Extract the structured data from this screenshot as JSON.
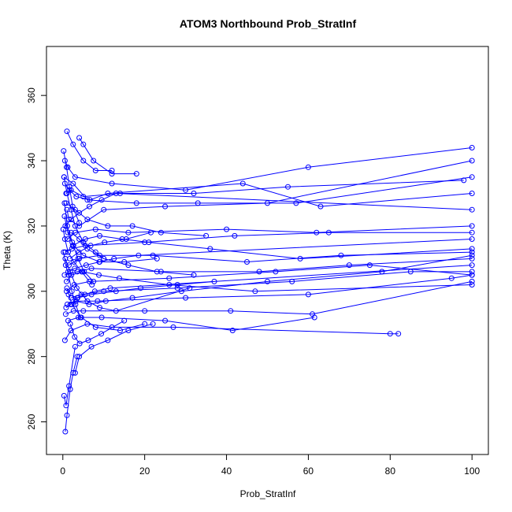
{
  "chart_data": {
    "type": "line",
    "title": "ATOM3 Northbound Prob_StratInf",
    "xlabel": "Prob_StratInf",
    "ylabel": "Theta (K)",
    "xlim": [
      -4,
      104
    ],
    "ylim": [
      250,
      375
    ],
    "xticks": [
      0,
      20,
      40,
      60,
      80,
      100
    ],
    "yticks": [
      260,
      280,
      300,
      320,
      340,
      360
    ],
    "grid": false,
    "legend": "none",
    "series_color": "#0000ff",
    "marker": "open-circle",
    "series": [
      {
        "x": [
          0.5,
          1.2,
          3.0,
          12.0,
          30.0,
          60.0,
          100.0
        ],
        "y": [
          340,
          338,
          335,
          333,
          331,
          338,
          344
        ]
      },
      {
        "x": [
          0.8,
          2.0,
          5.0,
          14.0,
          32.0,
          55.0,
          98.0
        ],
        "y": [
          330,
          331,
          329,
          330,
          330,
          332,
          334
        ]
      },
      {
        "x": [
          1.0,
          1.5,
          4.0,
          10.0,
          25.0,
          50.0,
          100.0
        ],
        "y": [
          325,
          322,
          320,
          325,
          326,
          327,
          340
        ]
      },
      {
        "x": [
          0.3,
          2.5,
          6.0,
          18.0,
          33.0,
          57.0,
          100.0
        ],
        "y": [
          335,
          333,
          328,
          327,
          327,
          327,
          335
        ]
      },
      {
        "x": [
          1.2,
          3.0,
          8.0,
          16.0,
          40.0,
          62.0,
          100.0
        ],
        "y": [
          316,
          318,
          319,
          318,
          319,
          318,
          320
        ]
      },
      {
        "x": [
          0.6,
          2.2,
          5.5,
          20.0,
          42.0,
          65.0,
          100.0
        ],
        "y": [
          312,
          313,
          314,
          315,
          317,
          318,
          318
        ]
      },
      {
        "x": [
          1.5,
          4.0,
          9.0,
          22.0,
          45.0,
          68.0,
          100.0
        ],
        "y": [
          308,
          310,
          311,
          311,
          309,
          311,
          312
        ]
      },
      {
        "x": [
          0.4,
          3.5,
          7.0,
          24.0,
          48.0,
          70.0,
          100.0
        ],
        "y": [
          305,
          306,
          307,
          306,
          306,
          308,
          310
        ]
      },
      {
        "x": [
          0.9,
          2.8,
          6.5,
          26.0,
          52.0,
          75.0,
          100.0
        ],
        "y": [
          300,
          302,
          303,
          304,
          306,
          308,
          305
        ]
      },
      {
        "x": [
          2.0,
          4.5,
          10.0,
          28.0,
          56.0,
          85.0,
          100.0
        ],
        "y": [
          298,
          299,
          300,
          301,
          303,
          306,
          306
        ]
      },
      {
        "x": [
          1.1,
          3.2,
          8.5,
          30.0,
          60.0,
          95.0,
          100.0
        ],
        "y": [
          296,
          297,
          297,
          298,
          299,
          304,
          305
        ]
      },
      {
        "x": [
          0.7,
          2.6,
          5.0,
          20.0,
          41.0,
          61.0,
          100.0
        ],
        "y": [
          293,
          294,
          294,
          294,
          294,
          293,
          303
        ]
      },
      {
        "x": [
          1.3,
          3.8,
          9.5,
          25.0,
          41.5,
          61.5
        ],
        "y": [
          291,
          292,
          292,
          291,
          288,
          292
        ]
      },
      {
        "x": [
          0.5,
          2.0,
          6.0,
          12.0,
          27.0,
          80.0,
          82.0
        ],
        "y": [
          285,
          288,
          290,
          289,
          289,
          287,
          287
        ]
      },
      {
        "x": [
          3.0,
          4.0,
          7.0,
          11.0,
          16.0,
          22.0
        ],
        "y": [
          275,
          280,
          283,
          285,
          288,
          290
        ]
      },
      {
        "x": [
          0.6,
          1.0,
          1.8,
          2.5,
          3.5
        ],
        "y": [
          257,
          262,
          270,
          275,
          280
        ]
      },
      {
        "x": [
          0.3,
          0.8,
          1.5,
          3.0
        ],
        "y": [
          268,
          265,
          271,
          283
        ]
      },
      {
        "x": [
          1.0,
          2.5,
          5.0,
          8.0,
          12.0
        ],
        "y": [
          349,
          345,
          340,
          337,
          337
        ]
      },
      {
        "x": [
          0.2,
          0.9,
          1.6,
          2.4,
          4.0
        ],
        "y": [
          343,
          338,
          332,
          326,
          321
        ]
      },
      {
        "x": [
          4.0,
          5.0,
          7.5,
          12.0,
          18.0
        ],
        "y": [
          347,
          345,
          340,
          336,
          336
        ]
      },
      {
        "x": [
          0.4,
          1.2,
          2.6,
          5.0,
          9.0,
          15.0,
          23.0
        ],
        "y": [
          323,
          318,
          314,
          311,
          309,
          309,
          310
        ]
      },
      {
        "x": [
          0.6,
          1.8,
          3.4,
          6.0,
          9.0,
          13.0,
          31.0
        ],
        "y": [
          310,
          306,
          301,
          297,
          295,
          294,
          301
        ]
      },
      {
        "x": [
          1.0,
          2.2,
          4.5,
          8.0,
          14.0,
          20.0
        ],
        "y": [
          301,
          296,
          292,
          289,
          288,
          290
        ]
      },
      {
        "x": [
          0.8,
          3.0,
          6.0,
          11.0,
          17.0,
          24.0,
          35.0
        ],
        "y": [
          327,
          325,
          322,
          320,
          320,
          318,
          317
        ]
      },
      {
        "x": [
          2.0,
          4.0,
          6.0,
          10.0,
          16.0,
          23.0,
          32.0
        ],
        "y": [
          318,
          316,
          313,
          310,
          308,
          306,
          305
        ]
      },
      {
        "x": [
          1.4,
          3.6,
          7.0,
          13.0,
          19.0,
          28.0,
          37.0
        ],
        "y": [
          299,
          298,
          299,
          300,
          301,
          302,
          303
        ]
      },
      {
        "x": [
          0.3,
          1.0,
          2.0,
          3.0,
          5.0,
          8.0,
          10.0
        ],
        "y": [
          335,
          330,
          325,
          320,
          315,
          312,
          310
        ]
      },
      {
        "x": [
          1.8,
          2.9,
          4.1,
          6.2,
          9.4,
          15.0
        ],
        "y": [
          290,
          286,
          284,
          285,
          287,
          291
        ]
      },
      {
        "x": [
          0.5,
          1.6,
          3.3,
          6.6,
          11.0,
          44.0,
          63.0,
          100.0
        ],
        "y": [
          333,
          331,
          329,
          328,
          330,
          333,
          326,
          330
        ]
      },
      {
        "x": [
          2.4,
          5.5,
          9.0,
          14.5,
          21.0,
          36.0,
          58.0,
          100.0
        ],
        "y": [
          314,
          316,
          317,
          316,
          315,
          313,
          310,
          313
        ]
      },
      {
        "x": [
          0.9,
          2.1,
          4.8,
          8.8,
          13.8,
          26.0,
          47.0,
          100.0
        ],
        "y": [
          303,
          305,
          306,
          305,
          304,
          302,
          300,
          302
        ]
      },
      {
        "x": [
          3.2,
          6.4,
          10.5,
          17.0,
          29.0,
          50.0,
          78.0,
          100.0
        ],
        "y": [
          297,
          296,
          297,
          298,
          300,
          303,
          306,
          311
        ]
      },
      {
        "x": [
          0.2,
          0.7,
          1.4,
          2.2,
          3.1,
          4.3
        ],
        "y": [
          312,
          308,
          305,
          300,
          296,
          292
        ]
      },
      {
        "x": [
          0.4,
          1.1,
          2.3,
          3.7,
          5.2,
          7.5
        ],
        "y": [
          327,
          320,
          315,
          310,
          306,
          303
        ]
      },
      {
        "x": [
          0.1,
          0.5,
          1.3,
          2.7,
          4.6,
          7.1
        ],
        "y": [
          319,
          316,
          312,
          309,
          306,
          302
        ]
      },
      {
        "x": [
          1.7,
          3.9,
          6.8,
          10.2,
          15.5,
          21.5
        ],
        "y": [
          310,
          312,
          314,
          315,
          316,
          318
        ]
      },
      {
        "x": [
          0.6,
          2.0,
          4.0,
          6.5,
          9.5,
          13.0,
          100.0
        ],
        "y": [
          320,
          322,
          324,
          326,
          328,
          330,
          325
        ]
      },
      {
        "x": [
          1.3,
          2.9,
          5.7,
          8.9,
          12.5,
          18.5,
          100.0
        ],
        "y": [
          306,
          307,
          308,
          309,
          310,
          311,
          316
        ]
      },
      {
        "x": [
          0.8,
          1.9,
          3.5,
          5.4,
          7.8,
          11.6,
          100.0
        ],
        "y": [
          295,
          296,
          298,
          299,
          300,
          301,
          308
        ]
      }
    ]
  }
}
